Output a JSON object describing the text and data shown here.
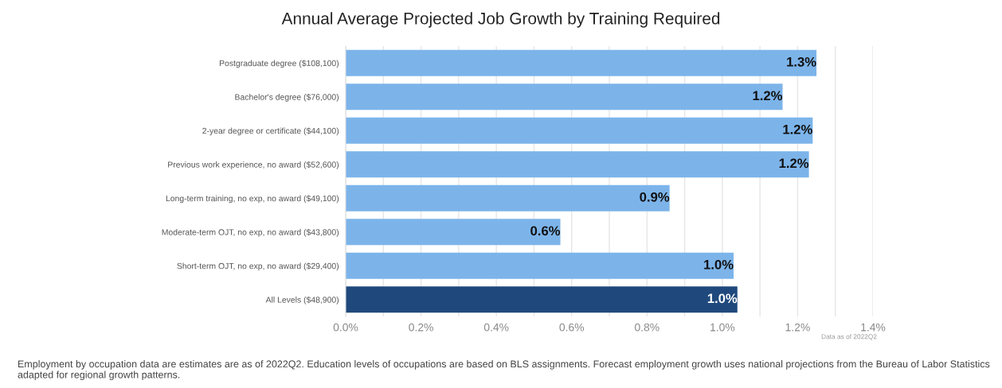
{
  "chart_data": {
    "type": "bar",
    "orientation": "horizontal",
    "title": "Annual Average Projected Job Growth by Training Required",
    "categories": [
      "Postgraduate degree ($108,100)",
      "Bachelor's degree ($76,000)",
      "2-year degree or certificate ($44,100)",
      "Previous work experience, no award ($52,600)",
      "Long-term training, no exp, no award ($49,100)",
      "Moderate-term OJT, no exp, no award ($43,800)",
      "Short-term OJT, no exp, no award ($29,400)",
      "All Levels ($48,900)"
    ],
    "values": [
      1.25,
      1.16,
      1.24,
      1.23,
      0.86,
      0.57,
      1.03,
      1.04
    ],
    "value_labels": [
      "1.3%",
      "1.2%",
      "1.2%",
      "1.2%",
      "0.9%",
      "0.6%",
      "1.0%",
      "1.0%"
    ],
    "colors": [
      "#7cb4ea",
      "#7cb4ea",
      "#7cb4ea",
      "#7cb4ea",
      "#7cb4ea",
      "#7cb4ea",
      "#7cb4ea",
      "#1f497d"
    ],
    "xlim": [
      0,
      1.4
    ],
    "xticks": [
      {
        "value": 0,
        "label": "0.0%"
      },
      {
        "value": 0.1,
        "label": null
      },
      {
        "value": 0.2,
        "label": "0.2%"
      },
      {
        "value": 0.3,
        "label": null
      },
      {
        "value": 0.4,
        "label": "0.4%"
      },
      {
        "value": 0.5,
        "label": null
      },
      {
        "value": 0.6,
        "label": "0.6%"
      },
      {
        "value": 0.7,
        "label": null
      },
      {
        "value": 0.8,
        "label": "0.8%"
      },
      {
        "value": 0.9,
        "label": null
      },
      {
        "value": 1.0,
        "label": "1.0%"
      },
      {
        "value": 1.1,
        "label": null
      },
      {
        "value": 1.2,
        "label": "1.2%"
      },
      {
        "value": 1.3,
        "label": null
      },
      {
        "value": 1.4,
        "label": "1.4%"
      }
    ],
    "grid": "x",
    "annotations": [
      "Data as of 2022Q2",
      "Employment by occupation data are estimates are as of 2022Q2. Education levels of occupations are based on BLS assignments. Forecast employment growth uses national projections from the Bureau of Labor Statistics adapted for regional growth patterns."
    ]
  }
}
